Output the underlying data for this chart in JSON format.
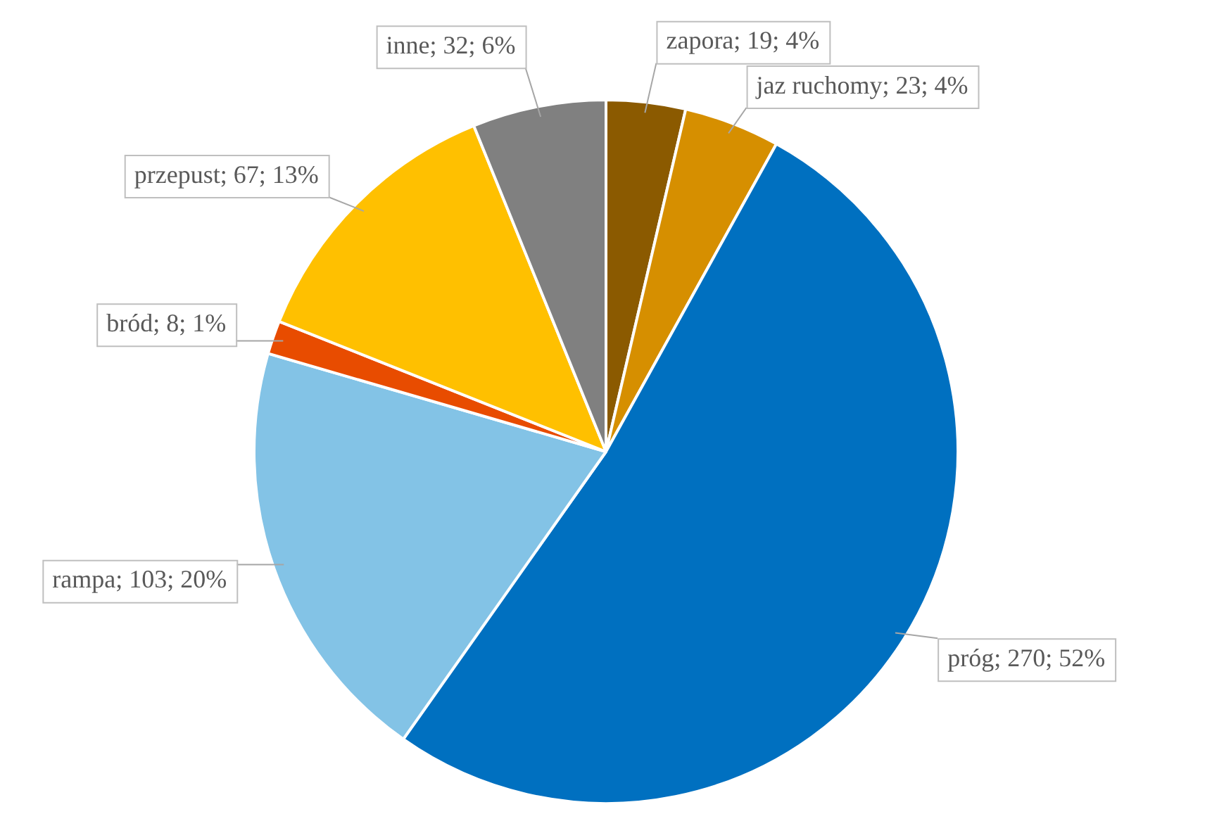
{
  "chart_data": {
    "type": "pie",
    "categories": [
      "zapora",
      "jaz ruchomy",
      "próg",
      "rampa",
      "bród",
      "przepust",
      "inne"
    ],
    "values": [
      19,
      23,
      270,
      103,
      8,
      67,
      32
    ],
    "colors": [
      "#8b5a00",
      "#d68f00",
      "#0070c0",
      "#83c3e6",
      "#e84c00",
      "#ffc000",
      "#808080"
    ],
    "value_labels": [
      "19; 4%",
      "23; 4%",
      "270; 52%",
      "103; 20%",
      "8; 1%",
      "67; 13%",
      "32; 6%"
    ],
    "legend": false
  }
}
